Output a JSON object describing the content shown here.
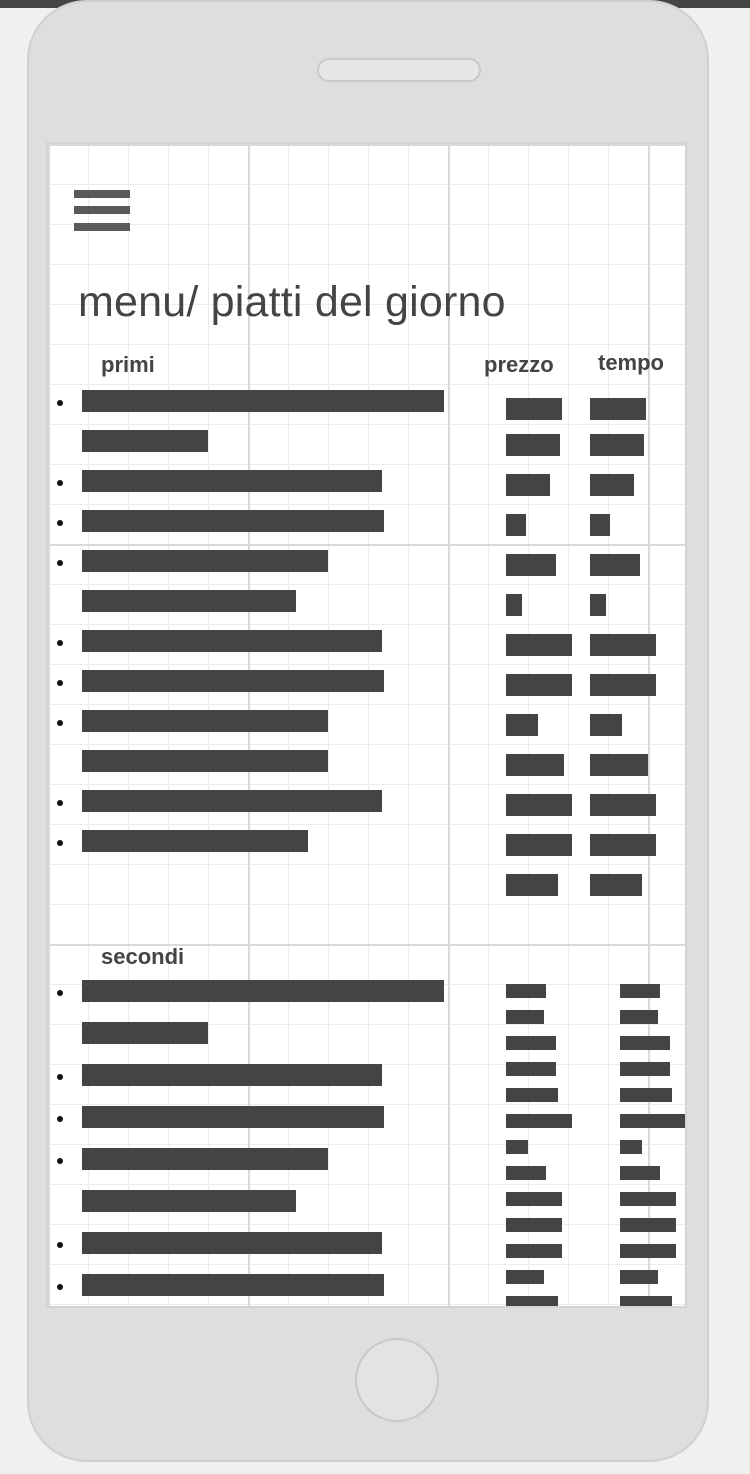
{
  "page": {
    "title": "menu/ piatti del giorno",
    "icon_menu": "hamburger-menu-icon"
  },
  "primi": {
    "header": "primi",
    "price_header": "prezzo",
    "time_header": "tempo",
    "items": [
      {
        "bullet": true,
        "name_w": 362,
        "price_w": 56,
        "time_w": 56
      },
      {
        "bullet": false,
        "name_w": 126,
        "price_w": 54,
        "time_w": 54
      },
      {
        "bullet": true,
        "name_w": 300,
        "price_w": 44,
        "time_w": 44
      },
      {
        "bullet": true,
        "name_w": 302,
        "price_w": 20,
        "time_w": 20
      },
      {
        "bullet": true,
        "name_w": 246,
        "price_w": 50,
        "time_w": 50
      },
      {
        "bullet": false,
        "name_w": 214,
        "price_w": 16,
        "time_w": 16
      },
      {
        "bullet": true,
        "name_w": 300,
        "price_w": 66,
        "time_w": 66
      },
      {
        "bullet": true,
        "name_w": 302,
        "price_w": 66,
        "time_w": 66
      },
      {
        "bullet": true,
        "name_w": 246,
        "price_w": 32,
        "time_w": 32
      },
      {
        "bullet": false,
        "name_w": 246,
        "price_w": 58,
        "time_w": 58
      },
      {
        "bullet": true,
        "name_w": 300,
        "price_w": 66,
        "time_w": 66
      },
      {
        "bullet": true,
        "name_w": 226,
        "price_w": 66,
        "time_w": 66
      },
      {
        "bullet": null,
        "name_w": 0,
        "price_w": 52,
        "time_w": 52
      }
    ]
  },
  "secondi": {
    "header": "secondi",
    "items": [
      {
        "bullet": true,
        "name_w": 362
      },
      {
        "bullet": false,
        "name_w": 126
      },
      {
        "bullet": true,
        "name_w": 300
      },
      {
        "bullet": true,
        "name_w": 302
      },
      {
        "bullet": true,
        "name_w": 246
      },
      {
        "bullet": false,
        "name_w": 214
      },
      {
        "bullet": true,
        "name_w": 300
      },
      {
        "bullet": true,
        "name_w": 302
      }
    ],
    "values": [
      {
        "price_w": 40,
        "time_w": 40
      },
      {
        "price_w": 38,
        "time_w": 38
      },
      {
        "price_w": 50,
        "time_w": 50
      },
      {
        "price_w": 50,
        "time_w": 50
      },
      {
        "price_w": 52,
        "time_w": 52
      },
      {
        "price_w": 66,
        "time_w": 66
      },
      {
        "price_w": 22,
        "time_w": 22
      },
      {
        "price_w": 40,
        "time_w": 40
      },
      {
        "price_w": 56,
        "time_w": 56
      },
      {
        "price_w": 56,
        "time_w": 56
      },
      {
        "price_w": 56,
        "time_w": 56
      },
      {
        "price_w": 38,
        "time_w": 38
      },
      {
        "price_w": 52,
        "time_w": 52
      }
    ]
  }
}
